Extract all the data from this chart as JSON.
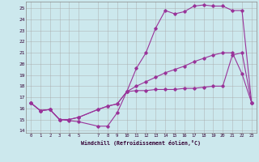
{
  "xlabel": "Windchill (Refroidissement éolien,°C)",
  "bg_color": "#cce8ed",
  "line_color": "#993399",
  "grid_color": "#aaaaaa",
  "xlim": [
    -0.5,
    23.5
  ],
  "ylim": [
    13.8,
    25.6
  ],
  "yticks": [
    14,
    15,
    16,
    17,
    18,
    19,
    20,
    21,
    22,
    23,
    24,
    25
  ],
  "xticks": [
    0,
    1,
    2,
    3,
    4,
    5,
    7,
    8,
    9,
    10,
    11,
    12,
    13,
    14,
    15,
    16,
    17,
    18,
    19,
    20,
    21,
    22,
    23
  ],
  "line1_x": [
    0,
    1,
    2,
    3,
    4,
    5,
    7,
    8,
    9,
    10,
    11,
    12,
    13,
    14,
    15,
    16,
    17,
    18,
    19,
    20,
    21,
    22,
    23
  ],
  "line1_y": [
    16.5,
    15.8,
    15.9,
    15.0,
    14.9,
    14.8,
    14.4,
    14.4,
    15.6,
    17.5,
    17.6,
    17.6,
    17.7,
    17.7,
    17.7,
    17.8,
    17.8,
    17.9,
    18.0,
    18.0,
    20.8,
    21.0,
    16.5
  ],
  "line2_x": [
    0,
    1,
    2,
    3,
    4,
    5,
    7,
    8,
    9,
    10,
    11,
    12,
    13,
    14,
    15,
    16,
    17,
    18,
    19,
    20,
    21,
    22,
    23
  ],
  "line2_y": [
    16.5,
    15.8,
    15.9,
    15.0,
    15.0,
    15.2,
    15.9,
    16.2,
    16.4,
    17.5,
    18.0,
    18.4,
    18.8,
    19.2,
    19.5,
    19.8,
    20.2,
    20.5,
    20.8,
    21.0,
    21.0,
    19.1,
    16.5
  ],
  "line3_x": [
    0,
    1,
    2,
    3,
    4,
    5,
    7,
    8,
    9,
    10,
    11,
    12,
    13,
    14,
    15,
    16,
    17,
    18,
    19,
    20,
    21,
    22,
    23
  ],
  "line3_y": [
    16.5,
    15.8,
    15.9,
    15.0,
    15.0,
    15.2,
    15.9,
    16.2,
    16.4,
    17.5,
    19.6,
    21.0,
    23.2,
    24.8,
    24.5,
    24.7,
    25.2,
    25.3,
    25.2,
    25.2,
    24.8,
    24.8,
    16.5
  ]
}
